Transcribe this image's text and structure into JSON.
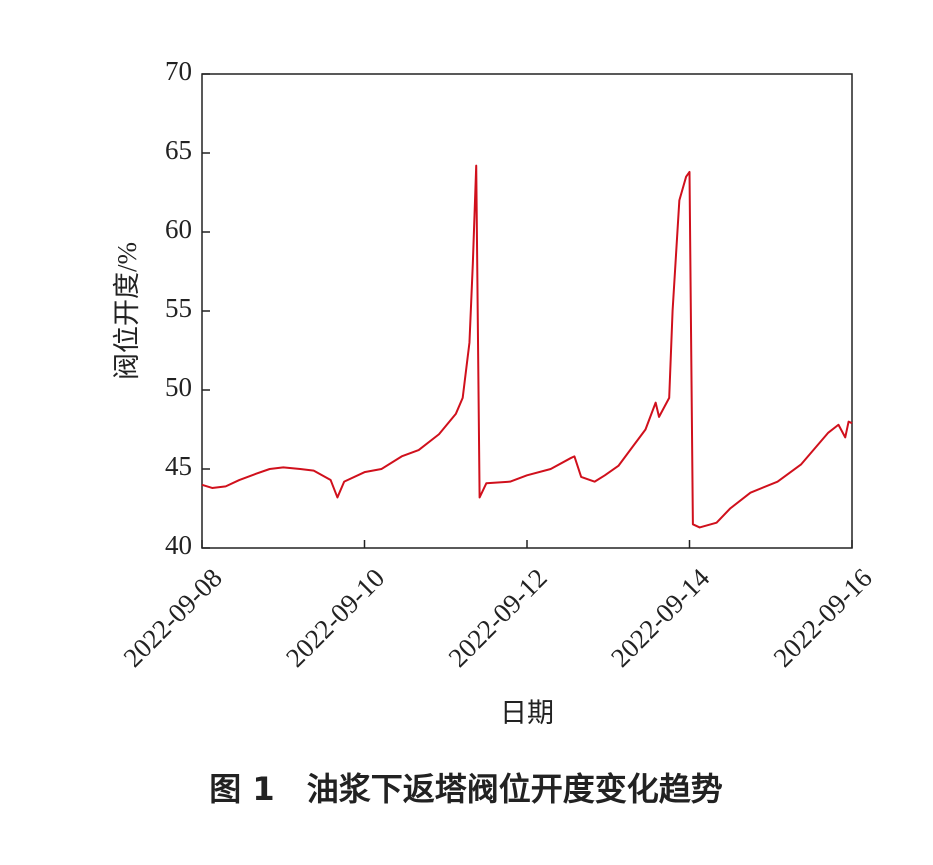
{
  "chart_data": {
    "type": "line",
    "caption": "图 1　油浆下返塔阀位开度变化趋势",
    "xlabel": "日期",
    "ylabel": "阀位开度/%",
    "color": "#d0101c",
    "x": [
      "2022-09-08 00:00",
      "2022-09-08 03:00",
      "2022-09-08 07:00",
      "2022-09-08 11:00",
      "2022-09-08 16:00",
      "2022-09-08 20:00",
      "2022-09-09 00:00",
      "2022-09-09 05:00",
      "2022-09-09 09:00",
      "2022-09-09 14:00",
      "2022-09-09 16:00",
      "2022-09-09 18:00",
      "2022-09-10 00:00",
      "2022-09-10 05:00",
      "2022-09-10 11:00",
      "2022-09-10 16:00",
      "2022-09-10 22:00",
      "2022-09-11 03:00",
      "2022-09-11 05:00",
      "2022-09-11 07:00",
      "2022-09-11 08:00",
      "2022-09-11 09:00",
      "2022-09-11 10:00",
      "2022-09-11 12:00",
      "2022-09-11 19:00",
      "2022-09-12 00:00",
      "2022-09-12 07:00",
      "2022-09-12 13:00",
      "2022-09-12 14:00",
      "2022-09-12 16:00",
      "2022-09-12 20:00",
      "2022-09-12 23:00",
      "2022-09-13 03:00",
      "2022-09-13 11:00",
      "2022-09-13 14:00",
      "2022-09-13 15:00",
      "2022-09-13 18:00",
      "2022-09-13 19:00",
      "2022-09-13 21:00",
      "2022-09-13 23:00",
      "2022-09-14 00:00",
      "2022-09-14 01:00",
      "2022-09-14 03:00",
      "2022-09-14 08:00",
      "2022-09-14 12:00",
      "2022-09-14 18:00",
      "2022-09-15 02:00",
      "2022-09-15 09:00",
      "2022-09-15 17:00",
      "2022-09-15 20:00",
      "2022-09-15 22:00",
      "2022-09-15 23:00",
      "2022-09-16 00:00"
    ],
    "values": [
      44.0,
      43.8,
      43.9,
      44.3,
      44.7,
      45.0,
      45.1,
      45.0,
      44.9,
      44.3,
      43.2,
      44.2,
      44.8,
      45.0,
      45.8,
      46.2,
      47.2,
      48.5,
      49.5,
      53,
      58,
      64.2,
      43.2,
      44.1,
      44.2,
      44.6,
      45.0,
      45.7,
      45.8,
      44.5,
      44.2,
      44.6,
      45.2,
      47.5,
      49.2,
      48.3,
      49.5,
      55,
      62,
      63.5,
      63.8,
      41.5,
      41.3,
      41.6,
      42.5,
      43.5,
      44.2,
      45.3,
      47.3,
      47.8,
      47.0,
      48.0,
      47.9
    ],
    "xlim": [
      "2022-09-08",
      "2022-09-16"
    ],
    "xticks": [
      "2022-09-08",
      "2022-09-10",
      "2022-09-12",
      "2022-09-14",
      "2022-09-16"
    ],
    "ylim": [
      40,
      70
    ],
    "yticks": [
      40,
      45,
      50,
      55,
      60,
      65,
      70
    ]
  }
}
